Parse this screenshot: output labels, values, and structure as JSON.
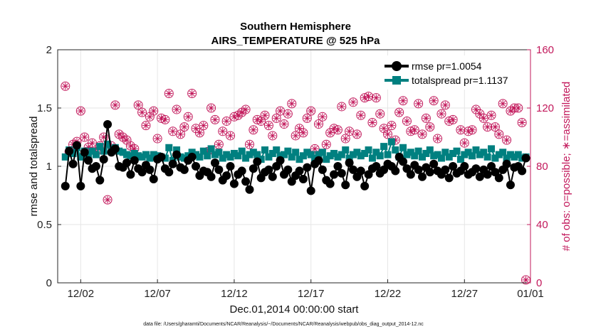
{
  "chart_data": {
    "type": "line",
    "title": "Southern Hemisphere",
    "subtitle": "AIRS_TEMPERATURE @ 525 hPa",
    "xlabel": "Dec.01,2014 00:00:00 start",
    "ylabel": "rmse and totalspread",
    "ylabel_right": "# of obs: o=possible; ∗=assimilated",
    "footnote": "data file: /Users/gharamti/Documents/NCAR/Reanalysis/~/Documents/NCAR/Reanalysis/webpub/obs_diag_output_2014-12.nc",
    "xlim": [
      0.5,
      31.3
    ],
    "ylim": [
      0,
      2
    ],
    "ylim_right": [
      0,
      160
    ],
    "xticks": [
      2,
      7,
      12,
      17,
      22,
      27,
      32
    ],
    "xtick_labels": [
      "12/02",
      "12/07",
      "12/12",
      "12/17",
      "12/22",
      "12/27",
      "01/01"
    ],
    "yticks": [
      0,
      0.5,
      1,
      1.5,
      2
    ],
    "ytick_labels": [
      "0",
      "0.5",
      "1",
      "1.5",
      "2"
    ],
    "yticks_right": [
      0,
      40,
      80,
      120,
      160
    ],
    "ytick_labels_right": [
      "0",
      "40",
      "80",
      "120",
      "160"
    ],
    "grid": true,
    "legend_position": "top-right",
    "colors": {
      "rmse": "#000000",
      "totalspread": "#008080",
      "obs": "#c2185b"
    },
    "rmse_pr": 1.0054,
    "totalspread_pr": 1.1137,
    "series": [
      {
        "name": "rmse pr=1.0054",
        "axis": "left",
        "color": "#000000",
        "marker": "circle",
        "x": [
          1.0,
          1.25,
          1.5,
          1.75,
          2.0,
          2.25,
          2.5,
          2.75,
          3.0,
          3.25,
          3.5,
          3.75,
          4.0,
          4.25,
          4.5,
          4.75,
          5.0,
          5.25,
          5.5,
          5.75,
          6.0,
          6.25,
          6.5,
          6.75,
          7.0,
          7.25,
          7.5,
          7.75,
          8.0,
          8.25,
          8.5,
          8.75,
          9.0,
          9.25,
          9.5,
          9.75,
          10.0,
          10.25,
          10.5,
          10.75,
          11.0,
          11.25,
          11.5,
          11.75,
          12.0,
          12.25,
          12.5,
          12.75,
          13.0,
          13.25,
          13.5,
          13.75,
          14.0,
          14.25,
          14.5,
          14.75,
          15.0,
          15.25,
          15.5,
          15.75,
          16.0,
          16.25,
          16.5,
          16.75,
          17.0,
          17.25,
          17.5,
          17.75,
          18.0,
          18.25,
          18.5,
          18.75,
          19.0,
          19.25,
          19.5,
          19.75,
          20.0,
          20.25,
          20.5,
          20.75,
          21.0,
          21.25,
          21.5,
          21.75,
          22.0,
          22.25,
          22.5,
          22.75,
          23.0,
          23.25,
          23.5,
          23.75,
          24.0,
          24.25,
          24.5,
          24.75,
          25.0,
          25.25,
          25.5,
          25.75,
          26.0,
          26.25,
          26.5,
          26.75,
          27.0,
          27.25,
          27.5,
          27.75,
          28.0,
          28.25,
          28.5,
          28.75,
          29.0,
          29.25,
          29.5,
          29.75,
          30.0,
          30.25,
          30.5,
          30.75,
          31.0
        ],
        "values": [
          0.83,
          1.13,
          1.02,
          1.18,
          0.83,
          1.12,
          1.05,
          0.98,
          1.0,
          0.88,
          1.06,
          1.36,
          1.12,
          1.15,
          1.0,
          0.99,
          1.03,
          0.93,
          1.05,
          0.98,
          0.95,
          1.01,
          0.97,
          0.89,
          1.06,
          1.08,
          0.98,
          0.95,
          1.02,
          1.1,
          0.99,
          0.97,
          1.05,
          1.08,
          1.0,
          0.92,
          0.96,
          0.95,
          0.91,
          1.03,
          0.97,
          0.88,
          0.92,
          1.0,
          0.85,
          0.93,
          0.96,
          0.87,
          0.8,
          0.98,
          1.04,
          0.9,
          0.95,
          0.97,
          0.91,
          1.0,
          1.05,
          0.93,
          0.97,
          0.87,
          0.92,
          0.96,
          0.89,
          0.99,
          0.79,
          1.02,
          1.05,
          0.97,
          0.88,
          0.85,
          0.93,
          1.0,
          0.94,
          0.84,
          1.03,
          0.97,
          0.91,
          0.96,
          0.83,
          0.93,
          0.98,
          1.0,
          0.94,
          0.97,
          1.02,
          1.0,
          0.96,
          1.08,
          1.04,
          0.98,
          0.93,
          1.01,
          0.97,
          0.91,
          0.99,
          0.95,
          1.02,
          0.96,
          0.93,
          0.97,
          0.9,
          1.0,
          0.94,
          0.96,
          1.0,
          0.93,
          0.95,
          0.98,
          0.91,
          0.97,
          0.93,
          1.0,
          0.95,
          0.9,
          0.97,
          1.02,
          0.84,
          0.99,
          1.0,
          0.96,
          1.07
        ]
      },
      {
        "name": "totalspread pr=1.1137",
        "axis": "left",
        "color": "#008080",
        "marker": "square",
        "x": [
          1.0,
          1.25,
          1.5,
          1.75,
          2.0,
          2.25,
          2.5,
          2.75,
          3.0,
          3.25,
          3.5,
          3.75,
          4.0,
          4.25,
          4.5,
          4.75,
          5.0,
          5.25,
          5.5,
          5.75,
          6.0,
          6.25,
          6.5,
          6.75,
          7.0,
          7.25,
          7.5,
          7.75,
          8.0,
          8.25,
          8.5,
          8.75,
          9.0,
          9.25,
          9.5,
          9.75,
          10.0,
          10.25,
          10.5,
          10.75,
          11.0,
          11.25,
          11.5,
          11.75,
          12.0,
          12.25,
          12.5,
          12.75,
          13.0,
          13.25,
          13.5,
          13.75,
          14.0,
          14.25,
          14.5,
          14.75,
          15.0,
          15.25,
          15.5,
          15.75,
          16.0,
          16.25,
          16.5,
          16.75,
          17.0,
          17.25,
          17.5,
          17.75,
          18.0,
          18.25,
          18.5,
          18.75,
          19.0,
          19.25,
          19.5,
          19.75,
          20.0,
          20.25,
          20.5,
          20.75,
          21.0,
          21.25,
          21.5,
          21.75,
          22.0,
          22.25,
          22.5,
          22.75,
          23.0,
          23.25,
          23.5,
          23.75,
          24.0,
          24.25,
          24.5,
          24.75,
          25.0,
          25.25,
          25.5,
          25.75,
          26.0,
          26.25,
          26.5,
          26.75,
          27.0,
          27.25,
          27.5,
          27.75,
          28.0,
          28.25,
          28.5,
          28.75,
          29.0,
          29.25,
          29.5,
          29.75,
          30.0,
          30.25,
          30.5,
          30.75,
          31.0
        ],
        "values": [
          1.08,
          1.14,
          1.11,
          1.16,
          1.08,
          1.13,
          1.1,
          1.13,
          1.1,
          1.17,
          1.13,
          1.19,
          1.15,
          1.16,
          1.13,
          1.12,
          1.1,
          1.09,
          1.11,
          1.09,
          1.08,
          1.1,
          1.07,
          1.1,
          1.09,
          1.08,
          1.07,
          1.16,
          1.05,
          1.14,
          1.08,
          1.07,
          1.09,
          1.12,
          1.1,
          1.08,
          1.13,
          1.09,
          1.15,
          1.1,
          1.12,
          1.07,
          1.1,
          1.08,
          1.11,
          1.09,
          1.13,
          1.07,
          1.1,
          1.12,
          1.1,
          1.06,
          1.14,
          1.08,
          1.11,
          1.14,
          1.09,
          1.1,
          1.13,
          1.08,
          1.12,
          1.06,
          1.09,
          1.12,
          1.1,
          1.07,
          1.1,
          1.12,
          1.06,
          1.09,
          1.11,
          1.08,
          1.1,
          1.14,
          1.07,
          1.1,
          1.12,
          1.09,
          1.11,
          1.14,
          1.07,
          1.12,
          1.09,
          1.17,
          1.1,
          1.21,
          1.14,
          1.08,
          1.16,
          1.1,
          1.12,
          1.09,
          1.13,
          1.08,
          1.11,
          1.14,
          1.09,
          1.1,
          1.07,
          1.12,
          1.08,
          1.11,
          1.13,
          1.06,
          1.1,
          1.12,
          1.09,
          1.14,
          1.1,
          1.12,
          1.08,
          1.15,
          1.07,
          1.1,
          1.12,
          1.07,
          1.1,
          1.08,
          1.1,
          1.07,
          1.08
        ]
      },
      {
        "name": "# of obs possible",
        "axis": "right",
        "color": "#c2185b",
        "marker": "circle-asterisk",
        "x": [
          1.0,
          1.25,
          1.5,
          1.75,
          2.0,
          2.25,
          2.5,
          2.75,
          3.0,
          3.25,
          3.5,
          3.75,
          4.0,
          4.25,
          4.5,
          4.75,
          5.0,
          5.25,
          5.5,
          5.75,
          6.0,
          6.25,
          6.5,
          6.75,
          7.0,
          7.25,
          7.5,
          7.75,
          8.0,
          8.25,
          8.5,
          8.75,
          9.0,
          9.25,
          9.5,
          9.75,
          10.0,
          10.25,
          10.5,
          10.75,
          11.0,
          11.25,
          11.5,
          11.75,
          12.0,
          12.25,
          12.5,
          12.75,
          13.0,
          13.25,
          13.5,
          13.75,
          14.0,
          14.25,
          14.5,
          14.75,
          15.0,
          15.25,
          15.5,
          15.75,
          16.0,
          16.25,
          16.5,
          16.75,
          17.0,
          17.25,
          17.5,
          17.75,
          18.0,
          18.25,
          18.5,
          18.75,
          19.0,
          19.25,
          19.5,
          19.75,
          20.0,
          20.25,
          20.5,
          20.75,
          21.0,
          21.25,
          21.5,
          21.75,
          22.0,
          22.25,
          22.5,
          22.75,
          23.0,
          23.25,
          23.5,
          23.75,
          24.0,
          24.25,
          24.5,
          24.75,
          25.0,
          25.25,
          25.5,
          25.75,
          26.0,
          26.25,
          26.5,
          26.75,
          27.0,
          27.25,
          27.5,
          27.75,
          28.0,
          28.25,
          28.5,
          28.75,
          29.0,
          29.25,
          29.5,
          29.75,
          30.0,
          30.25,
          30.5,
          30.75,
          31.0
        ],
        "values": [
          135,
          90,
          95,
          97,
          118,
          100,
          93,
          96,
          90,
          94,
          100,
          57,
          94,
          122,
          102,
          100,
          98,
          94,
          92,
          122,
          117,
          108,
          114,
          118,
          99,
          113,
          112,
          130,
          104,
          119,
          102,
          107,
          114,
          130,
          106,
          103,
          108,
          90,
          120,
          112,
          95,
          104,
          111,
          101,
          114,
          115,
          117,
          119,
          95,
          105,
          112,
          111,
          115,
          108,
          101,
          113,
          118,
          109,
          116,
          123,
          101,
          106,
          103,
          113,
          118,
          92,
          109,
          114,
          95,
          103,
          106,
          105,
          121,
          99,
          104,
          124,
          102,
          115,
          127,
          128,
          110,
          127,
          116,
          106,
          102,
          108,
          98,
          117,
          125,
          111,
          104,
          105,
          123,
          102,
          113,
          107,
          125,
          99,
          116,
          122,
          111,
          112,
          138,
          105,
          96,
          104,
          105,
          119,
          116,
          113,
          107,
          115,
          107,
          102,
          123,
          98,
          118,
          120,
          120,
          110,
          2
        ]
      }
    ]
  }
}
